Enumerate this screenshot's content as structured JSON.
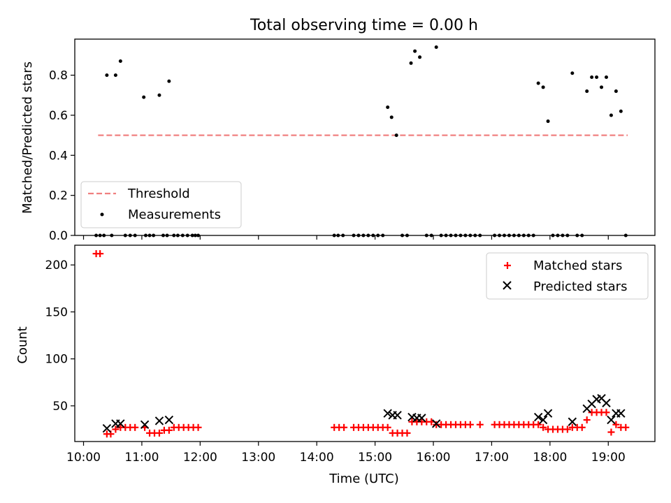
{
  "title": "Total observing time = 0.00 h",
  "colors": {
    "threshold": "#f08080",
    "matched": "#ff0000",
    "predicted": "#000000",
    "measurement": "#000000"
  },
  "chart_data": [
    {
      "type": "scatter",
      "panel": "top",
      "ylabel": "Matched/Predicted stars",
      "xlabel": "",
      "ylim": [
        0,
        0.98
      ],
      "yticks": [
        0.0,
        0.2,
        0.4,
        0.6,
        0.8
      ],
      "ytick_labels": [
        "0.0",
        "0.2",
        "0.4",
        "0.6",
        "0.8"
      ],
      "legend": {
        "placement": "lower-left",
        "threshold_label": "Threshold",
        "measurements_label": "Measurements"
      },
      "threshold": {
        "name": "Threshold",
        "y": 0.5,
        "x_range": [
          "10:15",
          "19:20"
        ]
      },
      "measurements": {
        "name": "Measurements",
        "nonzero": [
          {
            "x": "10:24",
            "y": 0.8
          },
          {
            "x": "10:33",
            "y": 0.8
          },
          {
            "x": "10:38",
            "y": 0.87
          },
          {
            "x": "11:02",
            "y": 0.69
          },
          {
            "x": "11:18",
            "y": 0.7
          },
          {
            "x": "11:28",
            "y": 0.77
          },
          {
            "x": "15:13",
            "y": 0.64
          },
          {
            "x": "15:17",
            "y": 0.59
          },
          {
            "x": "15:22",
            "y": 0.5
          },
          {
            "x": "15:37",
            "y": 0.86
          },
          {
            "x": "15:41",
            "y": 0.92
          },
          {
            "x": "15:46",
            "y": 0.89
          },
          {
            "x": "16:03",
            "y": 0.94
          },
          {
            "x": "17:48",
            "y": 0.76
          },
          {
            "x": "17:53",
            "y": 0.74
          },
          {
            "x": "17:58",
            "y": 0.57
          },
          {
            "x": "18:23",
            "y": 0.81
          },
          {
            "x": "18:38",
            "y": 0.72
          },
          {
            "x": "18:43",
            "y": 0.79
          },
          {
            "x": "18:48",
            "y": 0.79
          },
          {
            "x": "18:53",
            "y": 0.74
          },
          {
            "x": "18:58",
            "y": 0.79
          },
          {
            "x": "19:03",
            "y": 0.6
          },
          {
            "x": "19:08",
            "y": 0.72
          },
          {
            "x": "19:13",
            "y": 0.62
          }
        ],
        "zero_x": [
          "10:13",
          "10:17",
          "10:21",
          "10:29",
          "10:43",
          "10:48",
          "10:53",
          "11:04",
          "11:08",
          "11:12",
          "11:22",
          "11:26",
          "11:33",
          "11:37",
          "11:42",
          "11:47",
          "11:52",
          "11:55",
          "11:58",
          "14:18",
          "14:22",
          "14:27",
          "14:38",
          "14:43",
          "14:48",
          "14:53",
          "14:58",
          "15:03",
          "15:08",
          "15:28",
          "15:33",
          "15:53",
          "15:58",
          "16:08",
          "16:13",
          "16:18",
          "16:23",
          "16:28",
          "16:33",
          "16:38",
          "16:43",
          "16:48",
          "17:03",
          "17:08",
          "17:13",
          "17:18",
          "17:23",
          "17:28",
          "17:33",
          "17:38",
          "17:43",
          "18:03",
          "18:08",
          "18:13",
          "18:18",
          "18:28",
          "18:33",
          "19:18"
        ]
      }
    },
    {
      "type": "scatter",
      "panel": "bottom",
      "xlabel": "Time (UTC)",
      "ylabel": "Count",
      "xlim": [
        "09:51",
        "19:48"
      ],
      "ylim": [
        12,
        221
      ],
      "xticks": [
        "10:00",
        "11:00",
        "12:00",
        "13:00",
        "14:00",
        "15:00",
        "16:00",
        "17:00",
        "18:00",
        "19:00"
      ],
      "yticks": [
        50,
        100,
        150,
        200
      ],
      "ytick_labels": [
        "50",
        "100",
        "150",
        "200"
      ],
      "legend": {
        "placement": "top-right",
        "matched_label": "Matched stars",
        "predicted_label": "Predicted stars"
      },
      "series": [
        {
          "name": "Matched stars",
          "marker": "plus",
          "points": [
            [
              "10:13",
              212
            ],
            [
              "10:17",
              212
            ],
            [
              "10:24",
              20
            ],
            [
              "10:28",
              20
            ],
            [
              "10:33",
              25
            ],
            [
              "10:38",
              27
            ],
            [
              "10:43",
              27
            ],
            [
              "10:48",
              27
            ],
            [
              "10:53",
              27
            ],
            [
              "11:03",
              27
            ],
            [
              "11:08",
              21
            ],
            [
              "11:13",
              21
            ],
            [
              "11:18",
              21
            ],
            [
              "11:23",
              24
            ],
            [
              "11:28",
              24
            ],
            [
              "11:33",
              27
            ],
            [
              "11:38",
              27
            ],
            [
              "11:43",
              27
            ],
            [
              "11:48",
              27
            ],
            [
              "11:53",
              27
            ],
            [
              "11:58",
              27
            ],
            [
              "14:18",
              27
            ],
            [
              "14:23",
              27
            ],
            [
              "14:28",
              27
            ],
            [
              "14:38",
              27
            ],
            [
              "14:43",
              27
            ],
            [
              "14:48",
              27
            ],
            [
              "14:53",
              27
            ],
            [
              "14:58",
              27
            ],
            [
              "15:03",
              27
            ],
            [
              "15:08",
              27
            ],
            [
              "15:13",
              27
            ],
            [
              "15:18",
              21
            ],
            [
              "15:23",
              21
            ],
            [
              "15:28",
              21
            ],
            [
              "15:33",
              21
            ],
            [
              "15:38",
              33
            ],
            [
              "15:43",
              33
            ],
            [
              "15:48",
              33
            ],
            [
              "15:53",
              33
            ],
            [
              "15:58",
              33
            ],
            [
              "16:03",
              30
            ],
            [
              "16:08",
              30
            ],
            [
              "16:13",
              30
            ],
            [
              "16:18",
              30
            ],
            [
              "16:23",
              30
            ],
            [
              "16:28",
              30
            ],
            [
              "16:33",
              30
            ],
            [
              "16:38",
              30
            ],
            [
              "16:48",
              30
            ],
            [
              "17:03",
              30
            ],
            [
              "17:08",
              30
            ],
            [
              "17:13",
              30
            ],
            [
              "17:18",
              30
            ],
            [
              "17:23",
              30
            ],
            [
              "17:28",
              30
            ],
            [
              "17:33",
              30
            ],
            [
              "17:38",
              30
            ],
            [
              "17:43",
              30
            ],
            [
              "17:48",
              30
            ],
            [
              "17:53",
              27
            ],
            [
              "17:58",
              25
            ],
            [
              "18:03",
              25
            ],
            [
              "18:08",
              25
            ],
            [
              "18:13",
              25
            ],
            [
              "18:18",
              25
            ],
            [
              "18:23",
              27
            ],
            [
              "18:28",
              27
            ],
            [
              "18:33",
              27
            ],
            [
              "18:38",
              35
            ],
            [
              "18:43",
              43
            ],
            [
              "18:48",
              43
            ],
            [
              "18:53",
              43
            ],
            [
              "18:58",
              43
            ],
            [
              "19:03",
              22
            ],
            [
              "19:08",
              30
            ],
            [
              "19:13",
              27
            ],
            [
              "19:18",
              27
            ]
          ]
        },
        {
          "name": "Predicted stars",
          "marker": "cross",
          "points": [
            [
              "10:24",
              26
            ],
            [
              "10:33",
              31
            ],
            [
              "10:38",
              31
            ],
            [
              "11:03",
              30
            ],
            [
              "11:18",
              34
            ],
            [
              "11:28",
              35
            ],
            [
              "15:13",
              42
            ],
            [
              "15:18",
              40
            ],
            [
              "15:23",
              40
            ],
            [
              "15:38",
              38
            ],
            [
              "15:43",
              37
            ],
            [
              "15:48",
              37
            ],
            [
              "16:03",
              31
            ],
            [
              "17:48",
              38
            ],
            [
              "17:53",
              35
            ],
            [
              "17:58",
              42
            ],
            [
              "18:23",
              33
            ],
            [
              "18:38",
              47
            ],
            [
              "18:43",
              52
            ],
            [
              "18:48",
              57
            ],
            [
              "18:53",
              58
            ],
            [
              "18:58",
              53
            ],
            [
              "19:03",
              35
            ],
            [
              "19:08",
              42
            ],
            [
              "19:13",
              42
            ]
          ]
        }
      ]
    }
  ]
}
